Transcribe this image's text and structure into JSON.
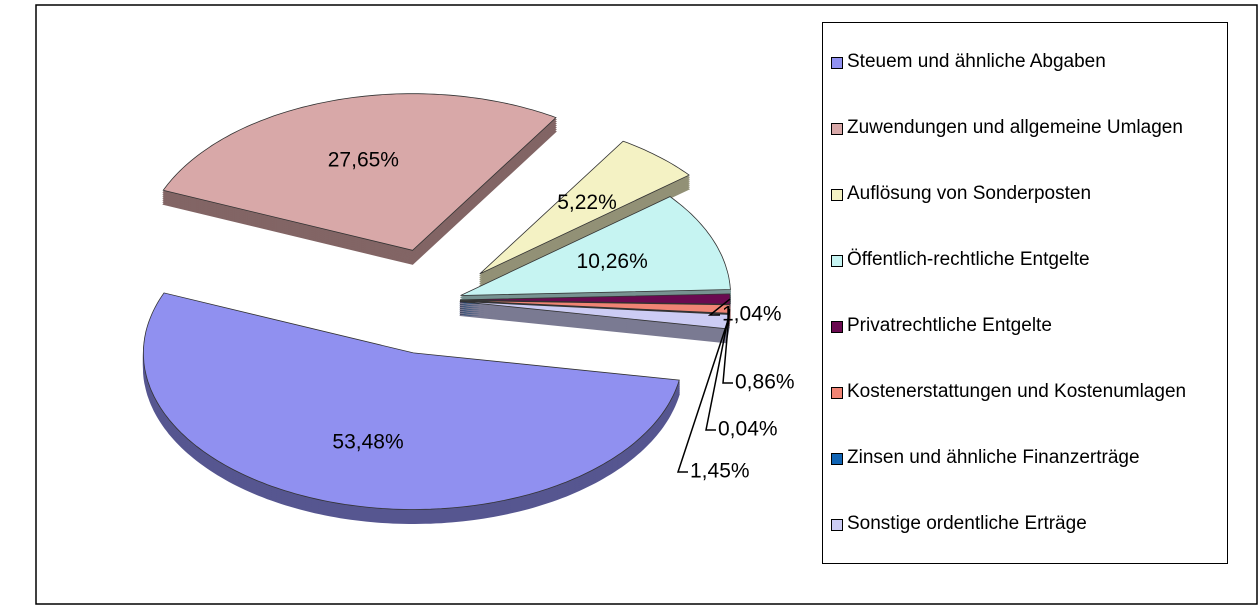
{
  "chart_data": {
    "type": "pie",
    "categories": [
      "Steuem und ähnliche Abgaben",
      "Zuwendungen und allgemeine Umlagen",
      "Auflösung von Sonderposten",
      "Öffentlich-rechtliche Entgelte",
      "Privatrechtliche Entgelte",
      "Kostenerstattungen und Kostenumlagen",
      "Zinsen und ähnliche Finanzerträge",
      "Sonstige ordentliche Erträge"
    ],
    "values": [
      53.48,
      27.65,
      5.22,
      10.26,
      1.04,
      0.86,
      0.04,
      1.45
    ],
    "value_labels": [
      "53,48%",
      "27,65%",
      "5,22%",
      "10,26%",
      "1,04%",
      "0,86%",
      "0,04%",
      "1,45%"
    ],
    "colors": [
      "#9090f0",
      "#d8a8a8",
      "#f4f2c4",
      "#c6f4f2",
      "#6a0a50",
      "#f08474",
      "#1064b4",
      "#ccccf4"
    ],
    "legend": "right"
  }
}
